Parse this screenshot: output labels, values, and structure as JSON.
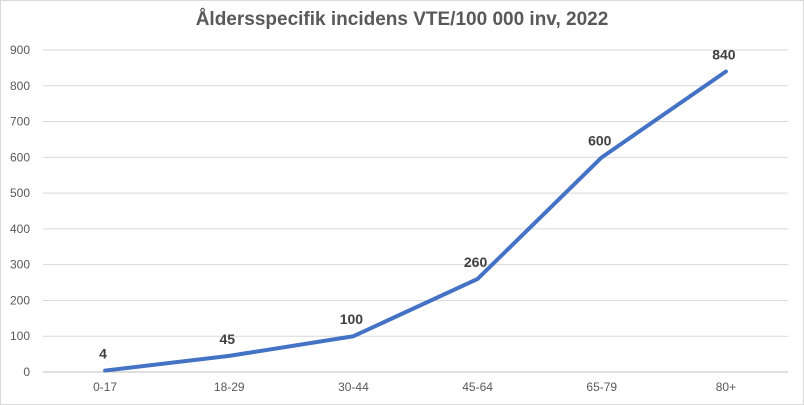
{
  "chart_data": {
    "type": "line",
    "title": "Åldersspecifik incidens VTE/100 000 inv, 2022",
    "categories": [
      "0-17",
      "18-29",
      "30-44",
      "45-64",
      "65-79",
      "80+"
    ],
    "series": [
      {
        "values": [
          4,
          45,
          100,
          260,
          600,
          840
        ],
        "color": "#4472c4"
      }
    ],
    "xlabel": "",
    "ylabel": "",
    "ylim": [
      0,
      900
    ],
    "yticks": [
      0,
      100,
      200,
      300,
      400,
      500,
      600,
      700,
      800,
      900
    ],
    "grid": true,
    "legend": "none",
    "data_labels": [
      "4",
      "45",
      "100",
      "260",
      "600",
      "840"
    ]
  }
}
